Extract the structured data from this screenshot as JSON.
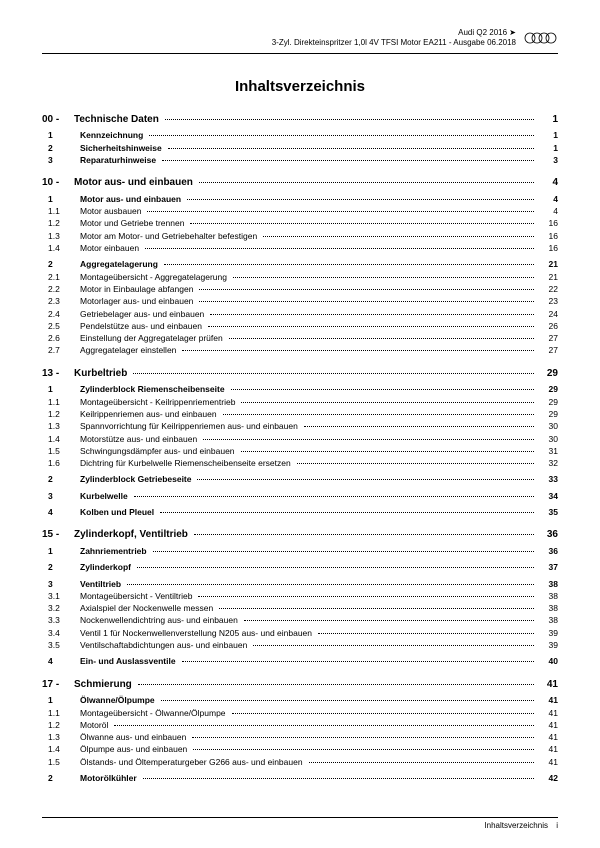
{
  "header": {
    "line1": "Audi Q2 2016 ➤",
    "line2": "3-Zyl. Direkteinspritzer 1,0l 4V TFSI Motor EA211 - Ausgabe 06.2018",
    "logo_label": "Audi"
  },
  "title": "Inhaltsverzeichnis",
  "sections": [
    {
      "num": "00 -",
      "label": "Technische Daten",
      "page": "1",
      "entries": [
        {
          "num": "1",
          "label": "Kennzeichnung",
          "page": "1",
          "bold": true
        },
        {
          "num": "2",
          "label": "Sicherheitshinweise",
          "page": "1",
          "bold": true
        },
        {
          "num": "3",
          "label": "Reparaturhinweise",
          "page": "3",
          "bold": true
        }
      ]
    },
    {
      "num": "10 -",
      "label": "Motor aus- und einbauen",
      "page": "4",
      "entries": [
        {
          "num": "1",
          "label": "Motor aus- und einbauen",
          "page": "4",
          "bold": true
        },
        {
          "num": "1.1",
          "label": "Motor ausbauen",
          "page": "4"
        },
        {
          "num": "1.2",
          "label": "Motor und Getriebe trennen",
          "page": "16"
        },
        {
          "num": "1.3",
          "label": "Motor am Motor- und Getriebehalter befestigen",
          "page": "16"
        },
        {
          "num": "1.4",
          "label": "Motor einbauen",
          "page": "16"
        },
        {
          "num": "2",
          "label": "Aggregatelagerung",
          "page": "21",
          "bold": true,
          "gap": true
        },
        {
          "num": "2.1",
          "label": "Montageübersicht - Aggregatelagerung",
          "page": "21"
        },
        {
          "num": "2.2",
          "label": "Motor in Einbaulage abfangen",
          "page": "22"
        },
        {
          "num": "2.3",
          "label": "Motorlager aus- und einbauen",
          "page": "23"
        },
        {
          "num": "2.4",
          "label": "Getriebelager aus- und einbauen",
          "page": "24"
        },
        {
          "num": "2.5",
          "label": "Pendelstütze aus- und einbauen",
          "page": "26"
        },
        {
          "num": "2.6",
          "label": "Einstellung der Aggregatelager prüfen",
          "page": "27"
        },
        {
          "num": "2.7",
          "label": "Aggregatelager einstellen",
          "page": "27"
        }
      ]
    },
    {
      "num": "13 -",
      "label": "Kurbeltrieb",
      "page": "29",
      "entries": [
        {
          "num": "1",
          "label": "Zylinderblock Riemenscheibenseite",
          "page": "29",
          "bold": true
        },
        {
          "num": "1.1",
          "label": "Montageübersicht - Keilrippenriementrieb",
          "page": "29"
        },
        {
          "num": "1.2",
          "label": "Keilrippenriemen aus- und einbauen",
          "page": "29"
        },
        {
          "num": "1.3",
          "label": "Spannvorrichtung für Keilrippenriemen aus- und einbauen",
          "page": "30"
        },
        {
          "num": "1.4",
          "label": "Motorstütze aus- und einbauen",
          "page": "30"
        },
        {
          "num": "1.5",
          "label": "Schwingungsdämpfer aus- und einbauen",
          "page": "31"
        },
        {
          "num": "1.6",
          "label": "Dichtring für Kurbelwelle Riemenscheibenseite ersetzen",
          "page": "32"
        },
        {
          "num": "2",
          "label": "Zylinderblock Getriebeseite",
          "page": "33",
          "bold": true,
          "gap": true
        },
        {
          "num": "3",
          "label": "Kurbelwelle",
          "page": "34",
          "bold": true,
          "gap": true
        },
        {
          "num": "4",
          "label": "Kolben und Pleuel",
          "page": "35",
          "bold": true,
          "gap": true
        }
      ]
    },
    {
      "num": "15 -",
      "label": "Zylinderkopf, Ventiltrieb",
      "page": "36",
      "entries": [
        {
          "num": "1",
          "label": "Zahnriementrieb",
          "page": "36",
          "bold": true
        },
        {
          "num": "2",
          "label": "Zylinderkopf",
          "page": "37",
          "bold": true,
          "gap": true
        },
        {
          "num": "3",
          "label": "Ventiltrieb",
          "page": "38",
          "bold": true,
          "gap": true
        },
        {
          "num": "3.1",
          "label": "Montageübersicht - Ventiltrieb",
          "page": "38"
        },
        {
          "num": "3.2",
          "label": "Axialspiel der Nockenwelle messen",
          "page": "38"
        },
        {
          "num": "3.3",
          "label": "Nockenwellendichtring aus- und einbauen",
          "page": "38"
        },
        {
          "num": "3.4",
          "label": "Ventil 1 für Nockenwellenverstellung N205 aus- und einbauen",
          "page": "39"
        },
        {
          "num": "3.5",
          "label": "Ventilschaftabdichtungen aus- und einbauen",
          "page": "39"
        },
        {
          "num": "4",
          "label": "Ein- und Auslassventile",
          "page": "40",
          "bold": true,
          "gap": true
        }
      ]
    },
    {
      "num": "17 -",
      "label": "Schmierung",
      "page": "41",
      "entries": [
        {
          "num": "1",
          "label": "Ölwanne/Ölpumpe",
          "page": "41",
          "bold": true
        },
        {
          "num": "1.1",
          "label": "Montageübersicht - Ölwanne/Ölpumpe",
          "page": "41"
        },
        {
          "num": "1.2",
          "label": "Motoröl",
          "page": "41"
        },
        {
          "num": "1.3",
          "label": "Ölwanne aus- und einbauen",
          "page": "41"
        },
        {
          "num": "1.4",
          "label": "Ölpumpe aus- und einbauen",
          "page": "41"
        },
        {
          "num": "1.5",
          "label": "Ölstands- und Öltemperaturgeber G266 aus- und einbauen",
          "page": "41"
        },
        {
          "num": "2",
          "label": "Motorölkühler",
          "page": "42",
          "bold": true,
          "gap": true
        }
      ]
    }
  ],
  "footer": {
    "label": "Inhaltsverzeichnis",
    "page": "i"
  }
}
